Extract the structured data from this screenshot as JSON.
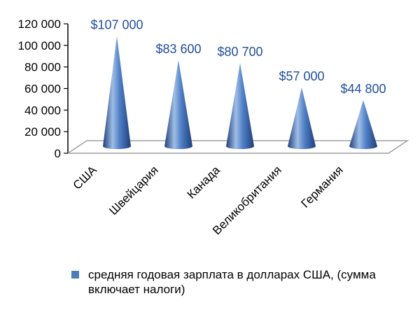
{
  "chart_data": {
    "type": "bar",
    "shape": "cone",
    "categories": [
      "США",
      "Швейцария",
      "Канада",
      "Великобритания",
      "Германия"
    ],
    "series": [
      {
        "name": "средняя годовая зарплата в долларах США, (сумма включает налоги)",
        "values": [
          107000,
          83600,
          80700,
          57000,
          44800
        ]
      }
    ],
    "data_labels": [
      "$107 000",
      "$83 600",
      "$80 700",
      "$57 000",
      "$44 800"
    ],
    "y_ticks": [
      "0",
      "20 000",
      "40 000",
      "60 000",
      "80 000",
      "100 000",
      "120 000"
    ],
    "ylim": [
      0,
      120000
    ],
    "grid": false,
    "legend_position": "bottom",
    "colors": {
      "cone_light": "#9fbde6",
      "cone_mid": "#4f7fc6",
      "cone_dark": "#1f3f78",
      "data_label": "#1f4e9a",
      "legend_swatch": "#4a7ebb",
      "floor_stroke": "#a0a0a0"
    }
  }
}
